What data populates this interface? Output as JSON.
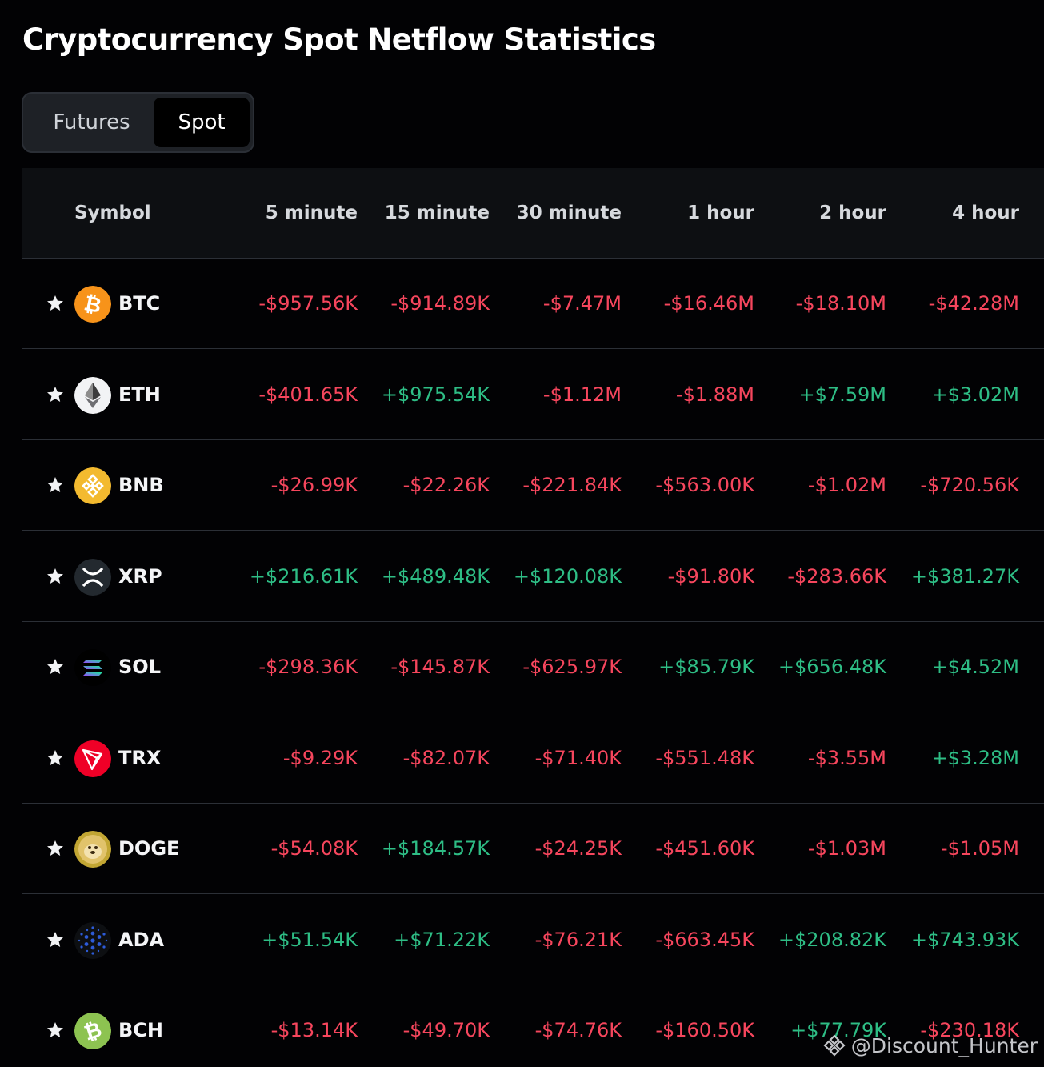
{
  "title": "Cryptocurrency Spot Netflow Statistics",
  "tabs": [
    {
      "label": "Futures",
      "active": false
    },
    {
      "label": "Spot",
      "active": true
    }
  ],
  "columns": [
    "Symbol",
    "5 minute",
    "15 minute",
    "30 minute",
    "1 hour",
    "2 hour",
    "4 hour"
  ],
  "colors": {
    "negative": "#f6465d",
    "positive": "#2ebd85",
    "background": "#020204"
  },
  "rows": [
    {
      "symbol": "BTC",
      "icon": "btc-icon",
      "values": [
        "-$957.56K",
        "-$914.89K",
        "-$7.47M",
        "-$16.46M",
        "-$18.10M",
        "-$42.28M"
      ]
    },
    {
      "symbol": "ETH",
      "icon": "eth-icon",
      "values": [
        "-$401.65K",
        "+$975.54K",
        "-$1.12M",
        "-$1.88M",
        "+$7.59M",
        "+$3.02M"
      ]
    },
    {
      "symbol": "BNB",
      "icon": "bnb-icon",
      "values": [
        "-$26.99K",
        "-$22.26K",
        "-$221.84K",
        "-$563.00K",
        "-$1.02M",
        "-$720.56K"
      ]
    },
    {
      "symbol": "XRP",
      "icon": "xrp-icon",
      "values": [
        "+$216.61K",
        "+$489.48K",
        "+$120.08K",
        "-$91.80K",
        "-$283.66K",
        "+$381.27K"
      ]
    },
    {
      "symbol": "SOL",
      "icon": "sol-icon",
      "values": [
        "-$298.36K",
        "-$145.87K",
        "-$625.97K",
        "+$85.79K",
        "+$656.48K",
        "+$4.52M"
      ]
    },
    {
      "symbol": "TRX",
      "icon": "trx-icon",
      "values": [
        "-$9.29K",
        "-$82.07K",
        "-$71.40K",
        "-$551.48K",
        "-$3.55M",
        "+$3.28M"
      ]
    },
    {
      "symbol": "DOGE",
      "icon": "doge-icon",
      "values": [
        "-$54.08K",
        "+$184.57K",
        "-$24.25K",
        "-$451.60K",
        "-$1.03M",
        "-$1.05M"
      ]
    },
    {
      "symbol": "ADA",
      "icon": "ada-icon",
      "values": [
        "+$51.54K",
        "+$71.22K",
        "-$76.21K",
        "-$663.45K",
        "+$208.82K",
        "+$743.93K"
      ]
    },
    {
      "symbol": "BCH",
      "icon": "bch-icon",
      "values": [
        "-$13.14K",
        "-$49.70K",
        "-$74.76K",
        "-$160.50K",
        "+$77.79K",
        "-$230.18K"
      ]
    }
  ],
  "watermark": "@Discount_Hunter"
}
